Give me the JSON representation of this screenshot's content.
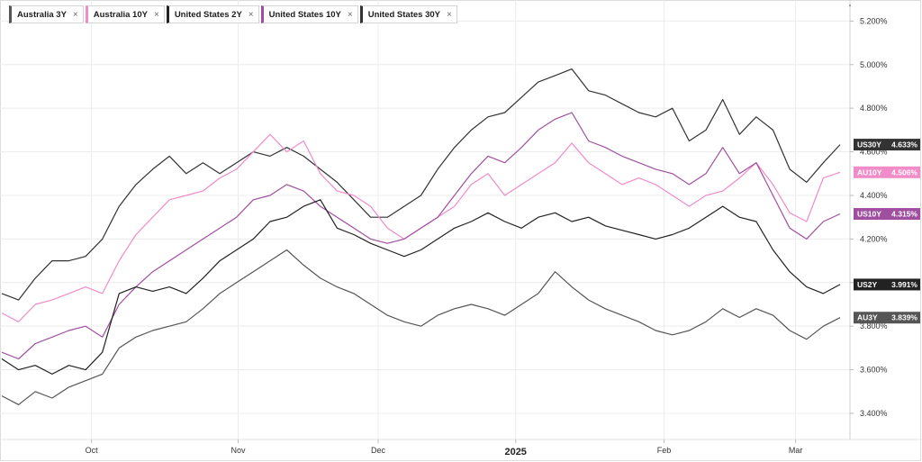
{
  "tabs": [
    {
      "label": "Australia 3Y",
      "color": "#555555"
    },
    {
      "label": "Australia 10Y",
      "color": "#f08cc8"
    },
    {
      "label": "United States 2Y",
      "color": "#222222"
    },
    {
      "label": "United States 10Y",
      "color": "#a04fa0"
    },
    {
      "label": "United States 30Y",
      "color": "#333333"
    }
  ],
  "close_glyph": "×",
  "chart_data": {
    "type": "line",
    "ylim": [
      3.28,
      5.28
    ],
    "y_ticks": [
      3.4,
      3.6,
      3.8,
      4.0,
      4.2,
      4.4,
      4.6,
      4.8,
      5.0,
      5.2
    ],
    "y_tick_labels": [
      "3.400%",
      "3.600%",
      "3.800%",
      "4.000%",
      "4.200%",
      "4.400%",
      "4.600%",
      "4.800%",
      "5.000%",
      "5.200%"
    ],
    "x_ticks": [
      {
        "label": "Oct",
        "pos": 0.107,
        "year": false
      },
      {
        "label": "Nov",
        "pos": 0.282,
        "year": false
      },
      {
        "label": "Dec",
        "pos": 0.449,
        "year": false
      },
      {
        "label": "2025",
        "pos": 0.613,
        "year": true
      },
      {
        "label": "Feb",
        "pos": 0.79,
        "year": false
      },
      {
        "label": "Mar",
        "pos": 0.947,
        "year": false
      }
    ],
    "grid": true,
    "series": [
      {
        "name": "United States 30Y",
        "badge": "US30Y",
        "last": "4.633%",
        "color": "#333333",
        "points": [
          [
            0,
            3.95
          ],
          [
            0.02,
            3.92
          ],
          [
            0.04,
            4.02
          ],
          [
            0.06,
            4.1
          ],
          [
            0.08,
            4.1
          ],
          [
            0.1,
            4.12
          ],
          [
            0.12,
            4.2
          ],
          [
            0.14,
            4.35
          ],
          [
            0.16,
            4.45
          ],
          [
            0.18,
            4.52
          ],
          [
            0.2,
            4.58
          ],
          [
            0.22,
            4.5
          ],
          [
            0.24,
            4.55
          ],
          [
            0.26,
            4.5
          ],
          [
            0.28,
            4.55
          ],
          [
            0.3,
            4.6
          ],
          [
            0.32,
            4.58
          ],
          [
            0.34,
            4.62
          ],
          [
            0.36,
            4.58
          ],
          [
            0.38,
            4.52
          ],
          [
            0.4,
            4.46
          ],
          [
            0.42,
            4.38
          ],
          [
            0.44,
            4.3
          ],
          [
            0.46,
            4.3
          ],
          [
            0.48,
            4.35
          ],
          [
            0.5,
            4.4
          ],
          [
            0.52,
            4.52
          ],
          [
            0.54,
            4.62
          ],
          [
            0.56,
            4.7
          ],
          [
            0.58,
            4.76
          ],
          [
            0.6,
            4.78
          ],
          [
            0.62,
            4.85
          ],
          [
            0.64,
            4.92
          ],
          [
            0.66,
            4.95
          ],
          [
            0.68,
            4.98
          ],
          [
            0.7,
            4.88
          ],
          [
            0.72,
            4.86
          ],
          [
            0.74,
            4.82
          ],
          [
            0.76,
            4.78
          ],
          [
            0.78,
            4.76
          ],
          [
            0.8,
            4.8
          ],
          [
            0.82,
            4.65
          ],
          [
            0.84,
            4.7
          ],
          [
            0.86,
            4.84
          ],
          [
            0.88,
            4.68
          ],
          [
            0.9,
            4.76
          ],
          [
            0.92,
            4.7
          ],
          [
            0.94,
            4.52
          ],
          [
            0.96,
            4.46
          ],
          [
            0.98,
            4.55
          ],
          [
            1,
            4.633
          ]
        ]
      },
      {
        "name": "Australia 10Y",
        "badge": "AU10Y",
        "last": "4.506%",
        "color": "#f08cc8",
        "points": [
          [
            0,
            3.86
          ],
          [
            0.02,
            3.82
          ],
          [
            0.04,
            3.9
          ],
          [
            0.06,
            3.92
          ],
          [
            0.08,
            3.95
          ],
          [
            0.1,
            3.98
          ],
          [
            0.12,
            3.95
          ],
          [
            0.14,
            4.1
          ],
          [
            0.16,
            4.22
          ],
          [
            0.18,
            4.3
          ],
          [
            0.2,
            4.38
          ],
          [
            0.22,
            4.4
          ],
          [
            0.24,
            4.42
          ],
          [
            0.26,
            4.48
          ],
          [
            0.28,
            4.52
          ],
          [
            0.3,
            4.6
          ],
          [
            0.32,
            4.68
          ],
          [
            0.34,
            4.6
          ],
          [
            0.36,
            4.65
          ],
          [
            0.38,
            4.5
          ],
          [
            0.4,
            4.42
          ],
          [
            0.42,
            4.4
          ],
          [
            0.44,
            4.35
          ],
          [
            0.46,
            4.25
          ],
          [
            0.48,
            4.2
          ],
          [
            0.5,
            4.25
          ],
          [
            0.52,
            4.3
          ],
          [
            0.54,
            4.35
          ],
          [
            0.56,
            4.45
          ],
          [
            0.58,
            4.5
          ],
          [
            0.6,
            4.4
          ],
          [
            0.62,
            4.45
          ],
          [
            0.64,
            4.5
          ],
          [
            0.66,
            4.55
          ],
          [
            0.68,
            4.64
          ],
          [
            0.7,
            4.55
          ],
          [
            0.72,
            4.5
          ],
          [
            0.74,
            4.45
          ],
          [
            0.76,
            4.48
          ],
          [
            0.78,
            4.45
          ],
          [
            0.8,
            4.4
          ],
          [
            0.82,
            4.35
          ],
          [
            0.84,
            4.4
          ],
          [
            0.86,
            4.42
          ],
          [
            0.88,
            4.48
          ],
          [
            0.9,
            4.55
          ],
          [
            0.92,
            4.45
          ],
          [
            0.94,
            4.32
          ],
          [
            0.96,
            4.28
          ],
          [
            0.98,
            4.48
          ],
          [
            1,
            4.506
          ]
        ]
      },
      {
        "name": "United States 10Y",
        "badge": "US10Y",
        "last": "4.315%",
        "color": "#a04fa0",
        "points": [
          [
            0,
            3.68
          ],
          [
            0.02,
            3.65
          ],
          [
            0.04,
            3.72
          ],
          [
            0.06,
            3.75
          ],
          [
            0.08,
            3.78
          ],
          [
            0.1,
            3.8
          ],
          [
            0.12,
            3.75
          ],
          [
            0.14,
            3.9
          ],
          [
            0.16,
            3.98
          ],
          [
            0.18,
            4.05
          ],
          [
            0.2,
            4.1
          ],
          [
            0.22,
            4.15
          ],
          [
            0.24,
            4.2
          ],
          [
            0.26,
            4.25
          ],
          [
            0.28,
            4.3
          ],
          [
            0.3,
            4.38
          ],
          [
            0.32,
            4.4
          ],
          [
            0.34,
            4.45
          ],
          [
            0.36,
            4.42
          ],
          [
            0.38,
            4.35
          ],
          [
            0.4,
            4.3
          ],
          [
            0.42,
            4.25
          ],
          [
            0.44,
            4.2
          ],
          [
            0.46,
            4.18
          ],
          [
            0.48,
            4.2
          ],
          [
            0.5,
            4.25
          ],
          [
            0.52,
            4.3
          ],
          [
            0.54,
            4.4
          ],
          [
            0.56,
            4.5
          ],
          [
            0.58,
            4.58
          ],
          [
            0.6,
            4.55
          ],
          [
            0.62,
            4.62
          ],
          [
            0.64,
            4.7
          ],
          [
            0.66,
            4.75
          ],
          [
            0.68,
            4.78
          ],
          [
            0.7,
            4.65
          ],
          [
            0.72,
            4.62
          ],
          [
            0.74,
            4.58
          ],
          [
            0.76,
            4.55
          ],
          [
            0.78,
            4.52
          ],
          [
            0.8,
            4.5
          ],
          [
            0.82,
            4.45
          ],
          [
            0.84,
            4.5
          ],
          [
            0.86,
            4.62
          ],
          [
            0.88,
            4.5
          ],
          [
            0.9,
            4.55
          ],
          [
            0.92,
            4.4
          ],
          [
            0.94,
            4.25
          ],
          [
            0.96,
            4.2
          ],
          [
            0.98,
            4.28
          ],
          [
            1,
            4.315
          ]
        ]
      },
      {
        "name": "United States 2Y",
        "badge": "US2Y",
        "last": "3.991%",
        "color": "#222222",
        "points": [
          [
            0,
            3.65
          ],
          [
            0.02,
            3.6
          ],
          [
            0.04,
            3.62
          ],
          [
            0.06,
            3.58
          ],
          [
            0.08,
            3.62
          ],
          [
            0.1,
            3.6
          ],
          [
            0.12,
            3.68
          ],
          [
            0.14,
            3.95
          ],
          [
            0.16,
            3.98
          ],
          [
            0.18,
            3.96
          ],
          [
            0.2,
            3.98
          ],
          [
            0.22,
            3.95
          ],
          [
            0.24,
            4.02
          ],
          [
            0.26,
            4.1
          ],
          [
            0.28,
            4.15
          ],
          [
            0.3,
            4.2
          ],
          [
            0.32,
            4.28
          ],
          [
            0.34,
            4.3
          ],
          [
            0.36,
            4.35
          ],
          [
            0.38,
            4.38
          ],
          [
            0.4,
            4.25
          ],
          [
            0.42,
            4.22
          ],
          [
            0.44,
            4.18
          ],
          [
            0.46,
            4.15
          ],
          [
            0.48,
            4.12
          ],
          [
            0.5,
            4.15
          ],
          [
            0.52,
            4.2
          ],
          [
            0.54,
            4.25
          ],
          [
            0.56,
            4.28
          ],
          [
            0.58,
            4.32
          ],
          [
            0.6,
            4.28
          ],
          [
            0.62,
            4.25
          ],
          [
            0.64,
            4.3
          ],
          [
            0.66,
            4.32
          ],
          [
            0.68,
            4.28
          ],
          [
            0.7,
            4.3
          ],
          [
            0.72,
            4.26
          ],
          [
            0.74,
            4.24
          ],
          [
            0.76,
            4.22
          ],
          [
            0.78,
            4.2
          ],
          [
            0.8,
            4.22
          ],
          [
            0.82,
            4.25
          ],
          [
            0.84,
            4.3
          ],
          [
            0.86,
            4.35
          ],
          [
            0.88,
            4.3
          ],
          [
            0.9,
            4.28
          ],
          [
            0.92,
            4.15
          ],
          [
            0.94,
            4.05
          ],
          [
            0.96,
            3.98
          ],
          [
            0.98,
            3.95
          ],
          [
            1,
            3.991
          ]
        ]
      },
      {
        "name": "Australia 3Y",
        "badge": "AU3Y",
        "last": "3.839%",
        "color": "#555555",
        "points": [
          [
            0,
            3.48
          ],
          [
            0.02,
            3.44
          ],
          [
            0.04,
            3.5
          ],
          [
            0.06,
            3.47
          ],
          [
            0.08,
            3.52
          ],
          [
            0.1,
            3.55
          ],
          [
            0.12,
            3.58
          ],
          [
            0.14,
            3.7
          ],
          [
            0.16,
            3.75
          ],
          [
            0.18,
            3.78
          ],
          [
            0.2,
            3.8
          ],
          [
            0.22,
            3.82
          ],
          [
            0.24,
            3.88
          ],
          [
            0.26,
            3.95
          ],
          [
            0.28,
            4.0
          ],
          [
            0.3,
            4.05
          ],
          [
            0.32,
            4.1
          ],
          [
            0.34,
            4.15
          ],
          [
            0.36,
            4.08
          ],
          [
            0.38,
            4.02
          ],
          [
            0.4,
            3.98
          ],
          [
            0.42,
            3.95
          ],
          [
            0.44,
            3.9
          ],
          [
            0.46,
            3.85
          ],
          [
            0.48,
            3.82
          ],
          [
            0.5,
            3.8
          ],
          [
            0.52,
            3.85
          ],
          [
            0.54,
            3.88
          ],
          [
            0.56,
            3.9
          ],
          [
            0.58,
            3.88
          ],
          [
            0.6,
            3.85
          ],
          [
            0.62,
            3.9
          ],
          [
            0.64,
            3.95
          ],
          [
            0.66,
            4.05
          ],
          [
            0.68,
            3.98
          ],
          [
            0.7,
            3.92
          ],
          [
            0.72,
            3.88
          ],
          [
            0.74,
            3.85
          ],
          [
            0.76,
            3.82
          ],
          [
            0.78,
            3.78
          ],
          [
            0.8,
            3.76
          ],
          [
            0.82,
            3.78
          ],
          [
            0.84,
            3.82
          ],
          [
            0.86,
            3.88
          ],
          [
            0.88,
            3.84
          ],
          [
            0.9,
            3.88
          ],
          [
            0.92,
            3.85
          ],
          [
            0.94,
            3.78
          ],
          [
            0.96,
            3.74
          ],
          [
            0.98,
            3.8
          ],
          [
            1,
            3.839
          ]
        ]
      }
    ]
  }
}
